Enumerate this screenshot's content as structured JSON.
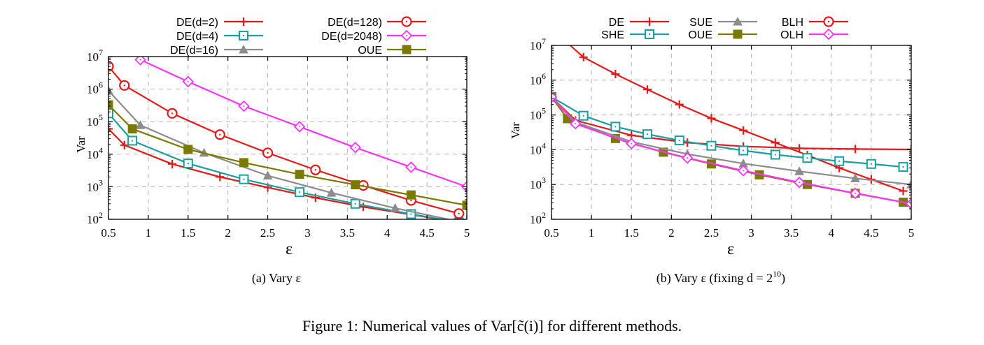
{
  "chart_data": [
    {
      "type": "line",
      "id": "a",
      "caption": "(a)  Vary ε",
      "xlabel": "ε",
      "ylabel": "Var",
      "xlim": [
        0.5,
        5
      ],
      "ylim": [
        100,
        10000000
      ],
      "yscale": "log",
      "grid": true,
      "legend_position": "top",
      "x_ticks": [
        0.5,
        1,
        1.5,
        2,
        2.5,
        3,
        3.5,
        4,
        4.5,
        5
      ],
      "x_tick_labels": [
        "0.5",
        "1",
        "1.5",
        "2",
        "2.5",
        "3",
        "3.5",
        "4",
        "4.5",
        "5"
      ],
      "y_ticks": [
        100,
        1000,
        10000,
        100000,
        1000000,
        10000000
      ],
      "y_tick_labels": [
        [
          "10",
          "2"
        ],
        [
          "10",
          "3"
        ],
        [
          "10",
          "4"
        ],
        [
          "10",
          "5"
        ],
        [
          "10",
          "6"
        ],
        [
          "10",
          "7"
        ]
      ],
      "series": [
        {
          "name": "DE(d=2)",
          "color": "#e31a1c",
          "marker": "plus",
          "x": [
            0.5,
            0.7,
            1.3,
            1.9,
            2.5,
            3.1,
            3.7,
            4.3,
            4.9
          ],
          "y": [
            60000,
            19000,
            5000,
            2000,
            950,
            460,
            240,
            140,
            80
          ]
        },
        {
          "name": "DE(d=4)",
          "color": "#1b9e9e",
          "marker": "square",
          "x": [
            0.5,
            0.8,
            1.5,
            2.2,
            2.9,
            3.6,
            4.3,
            4.9
          ],
          "y": [
            180000,
            26000,
            5200,
            1700,
            680,
            300,
            145,
            80
          ]
        },
        {
          "name": "DE(d=16)",
          "color": "#8c8c8c",
          "marker": "triangle",
          "x": [
            0.5,
            0.9,
            1.7,
            2.5,
            3.3,
            4.1,
            4.9
          ],
          "y": [
            900000,
            78000,
            11000,
            2200,
            650,
            220,
            85
          ]
        },
        {
          "name": "DE(d=128)",
          "color": "#e31a1c",
          "marker": "circle",
          "x": [
            0.5,
            0.7,
            1.3,
            1.9,
            2.5,
            3.1,
            3.7,
            4.3,
            4.9
          ],
          "y": [
            5000000,
            1300000,
            180000,
            40000,
            11000,
            3300,
            1100,
            380,
            150
          ]
        },
        {
          "name": "DE(d=2048)",
          "color": "#ff33ff",
          "marker": "diamond",
          "x": [
            0.9,
            1.5,
            2.2,
            2.9,
            3.6,
            4.3,
            5.0
          ],
          "y": [
            8000000,
            1700000,
            300000,
            70000,
            16000,
            4000,
            1000
          ]
        },
        {
          "name": "OUE",
          "color": "#7a7a00",
          "marker": "filledsquare",
          "x": [
            0.5,
            0.8,
            1.5,
            2.2,
            2.9,
            3.6,
            4.3,
            5.0
          ],
          "y": [
            330000,
            60000,
            14000,
            5500,
            2400,
            1150,
            560,
            270
          ]
        }
      ]
    },
    {
      "type": "line",
      "id": "b",
      "caption": "(b)  Vary ε (fixing d = 2",
      "caption_exp": "10",
      "caption_end": ")",
      "xlabel": "ε",
      "ylabel": "Var",
      "xlim": [
        0.5,
        5
      ],
      "ylim": [
        100,
        10000000
      ],
      "yscale": "log",
      "grid": true,
      "legend_position": "top",
      "x_ticks": [
        0.5,
        1,
        1.5,
        2,
        2.5,
        3,
        3.5,
        4,
        4.5,
        5
      ],
      "x_tick_labels": [
        "0.5",
        "1",
        "1.5",
        "2",
        "2.5",
        "3",
        "3.5",
        "4",
        "4.5",
        "5"
      ],
      "y_ticks": [
        100,
        1000,
        10000,
        100000,
        1000000,
        10000000
      ],
      "y_tick_labels": [
        [
          "10",
          "2"
        ],
        [
          "10",
          "3"
        ],
        [
          "10",
          "4"
        ],
        [
          "10",
          "5"
        ],
        [
          "10",
          "6"
        ],
        [
          "10",
          "7"
        ]
      ],
      "series": [
        {
          "name": "DE",
          "color": "#e31a1c",
          "marker": "plus",
          "x": [
            0.5,
            0.9,
            1.3,
            1.7,
            2.1,
            2.5,
            2.9,
            3.3,
            3.7,
            4.1,
            4.5,
            4.9
          ],
          "y": [
            30000000,
            4600000,
            1500000,
            540000,
            200000,
            80000,
            36000,
            16000,
            7000,
            3000,
            1400,
            650
          ]
        },
        {
          "name": "SHE",
          "color": "#e31a1c",
          "marker": "plus",
          "x": [
            0.5,
            0.8,
            1.5,
            2.2,
            2.9,
            3.6,
            4.3,
            5.0
          ],
          "y": [
            330000,
            70000,
            26000,
            16000,
            12500,
            11000,
            10500,
            10200
          ]
        },
        {
          "name": "SUE",
          "color": "#1b9e9e",
          "marker": "square",
          "x": [
            0.5,
            0.9,
            1.3,
            1.7,
            2.1,
            2.5,
            2.9,
            3.3,
            3.7,
            4.1,
            4.5,
            4.9
          ],
          "y": [
            330000,
            95000,
            46000,
            28000,
            18500,
            13000,
            9500,
            7200,
            5800,
            4700,
            3900,
            3200
          ]
        },
        {
          "name": "OUE",
          "color": "#7a7a00",
          "marker": "filledsquare",
          "x": [
            0.5,
            0.7,
            1.3,
            1.9,
            2.5,
            3.1,
            3.7,
            4.3,
            4.9
          ],
          "y": [
            330000,
            78000,
            21000,
            8500,
            3900,
            1900,
            1000,
            560,
            310
          ]
        },
        {
          "name": "BLH",
          "color": "#8c8c8c",
          "marker": "triangle",
          "x": [
            0.5,
            0.8,
            1.5,
            2.2,
            2.9,
            3.6,
            4.3,
            5.0
          ],
          "y": [
            330000,
            62000,
            17000,
            7500,
            4000,
            2400,
            1500,
            1000
          ]
        },
        {
          "name": "OLH",
          "color": "#ff33ff",
          "marker": "diamond",
          "x": [
            0.5,
            0.8,
            1.5,
            2.2,
            2.9,
            3.6,
            4.3,
            5.0
          ],
          "y": [
            330000,
            56000,
            15000,
            5800,
            2500,
            1150,
            560,
            280
          ]
        }
      ]
    }
  ],
  "legend_a": {
    "col1": [
      "DE(d=2)",
      "DE(d=4)",
      "DE(d=16)"
    ],
    "col2": [
      "DE(d=128)",
      "DE(d=2048)",
      "OUE"
    ]
  },
  "legend_b": {
    "row1": [
      "DE",
      "SUE",
      "BLH"
    ],
    "row2": [
      "SHE",
      "OUE",
      "OLH"
    ]
  },
  "figure_caption": "Figure 1: Numerical values of Var[c̃(i)] for different methods."
}
